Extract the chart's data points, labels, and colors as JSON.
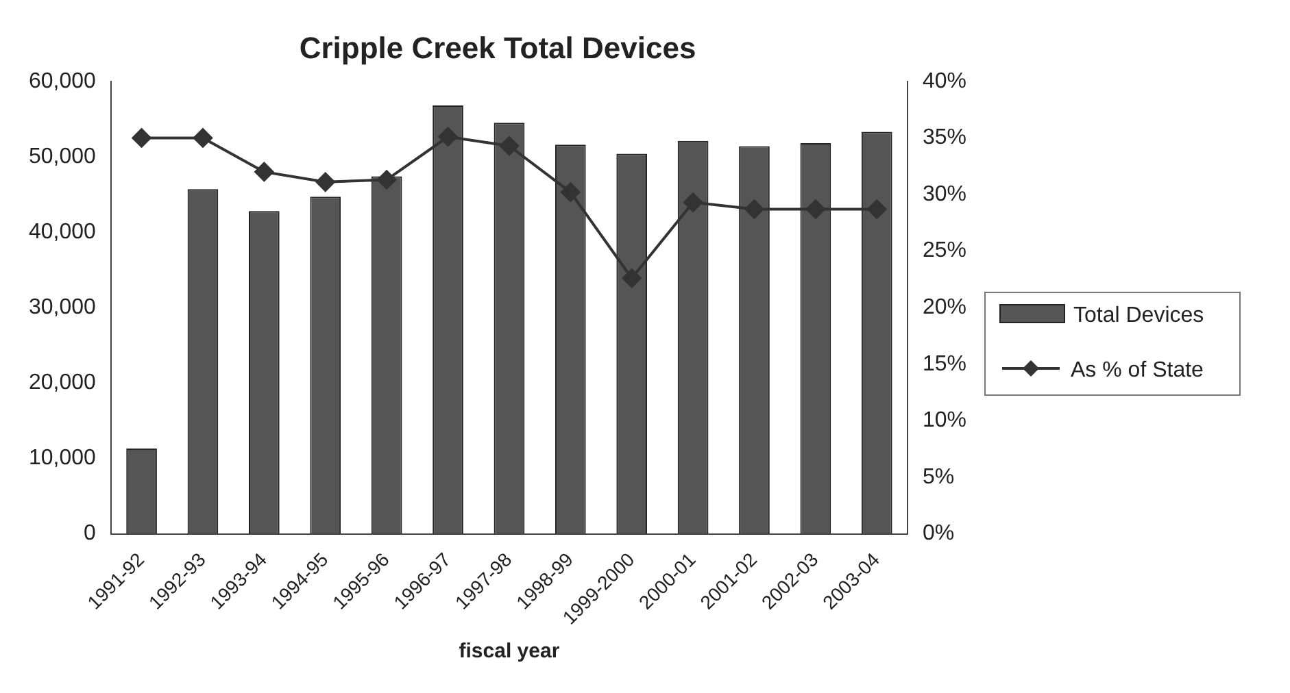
{
  "chart_data": {
    "type": "bar",
    "title": "Cripple Creek Total Devices",
    "xlabel": "fiscal year",
    "categories": [
      "1991-92",
      "1992-93",
      "1993-94",
      "1994-95",
      "1995-96",
      "1996-97",
      "1997-98",
      "1998-99",
      "1999-2000",
      "2000-01",
      "2001-02",
      "2002-03",
      "2003-04"
    ],
    "series": [
      {
        "name": "Total Devices",
        "color": "#555555",
        "values": [
          11300,
          45700,
          42800,
          44700,
          47400,
          56800,
          54500,
          51600,
          50400,
          52100,
          51400,
          51800,
          53300
        ]
      },
      {
        "name": "As % of State",
        "type": "line",
        "axis": "y2",
        "color": "#333333",
        "marker": "diamond",
        "values": [
          35,
          35,
          32,
          31.1,
          31.3,
          35.1,
          34.3,
          30.2,
          22.6,
          29.3,
          28.7,
          28.7,
          28.7
        ]
      }
    ],
    "ylim": [
      0,
      60000
    ],
    "yticks": [
      0,
      {
        "value": 10000,
        "label": "10,000"
      },
      {
        "value": 20000,
        "label": "20,000"
      },
      {
        "value": 30000,
        "label": "30,000"
      },
      {
        "value": 40000,
        "label": "40,000"
      },
      {
        "value": 50000,
        "label": "50,000"
      },
      {
        "value": 60000,
        "label": "60,000"
      }
    ],
    "y2lim": [
      0,
      40
    ],
    "y2ticks": [
      {
        "value": 0,
        "label": "0%"
      },
      {
        "value": 5,
        "label": "5%"
      },
      {
        "value": 10,
        "label": "10%"
      },
      {
        "value": 15,
        "label": "15%"
      },
      {
        "value": 20,
        "label": "20%"
      },
      {
        "value": 25,
        "label": "25%"
      },
      {
        "value": 30,
        "label": "30%"
      },
      {
        "value": 35,
        "label": "35%"
      },
      {
        "value": 40,
        "label": "40%"
      }
    ],
    "grid": false,
    "legend": "right"
  }
}
